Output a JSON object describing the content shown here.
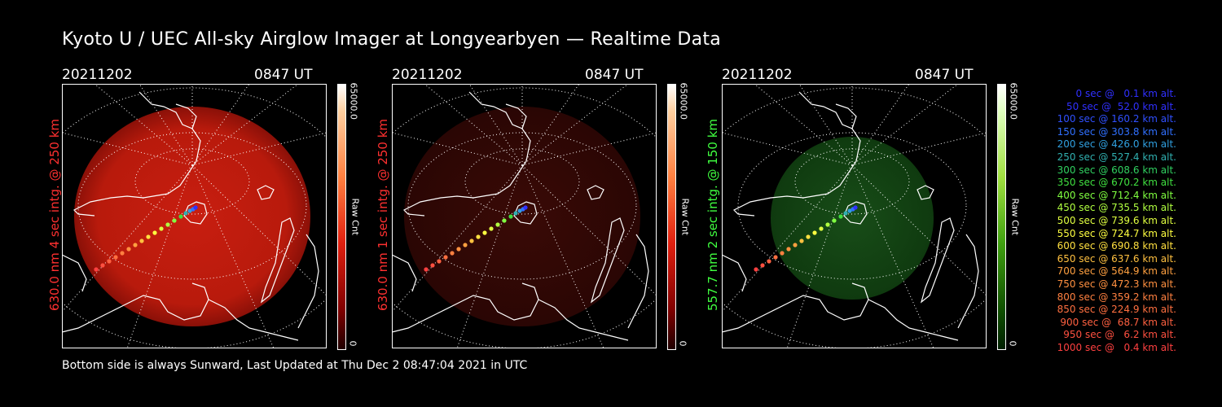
{
  "title": "Kyoto U / UEC All-sky Airglow Imager at Longyearbyen — Realtime Data",
  "footer": "Bottom side is always Sunward, Last Updated at Thu Dec  2 08:47:04 2021 in UTC",
  "panels": [
    {
      "date": "20211202",
      "time": "0847 UT",
      "side_label": "630.0 nm 4 sec intg. @ 250 km",
      "cb_max": "65000.0",
      "cb_min": "0",
      "cb_unit": "Raw Cnt",
      "color": "#ff3030"
    },
    {
      "date": "20211202",
      "time": "0847 UT",
      "side_label": "630.0 nm 1 sec intg. @ 250 km",
      "cb_max": "65000.0",
      "cb_min": "0",
      "cb_unit": "Raw Cnt",
      "color": "#ff3030"
    },
    {
      "date": "20211202",
      "time": "0847 UT",
      "side_label": "557.7 nm 2 sec intg. @ 150 km",
      "cb_max": "65000.0",
      "cb_min": "0",
      "cb_unit": "Raw Cnt",
      "color": "#40ff40"
    }
  ],
  "legend": [
    {
      "text": "   0 sec @   0.1 km alt.",
      "color": "#3030ff"
    },
    {
      "text": "  50 sec @  52.0 km alt.",
      "color": "#3030ff"
    },
    {
      "text": " 100 sec @ 160.2 km alt.",
      "color": "#3050ff"
    },
    {
      "text": " 150 sec @ 303.8 km alt.",
      "color": "#3070ff"
    },
    {
      "text": " 200 sec @ 426.0 km alt.",
      "color": "#30a0e0"
    },
    {
      "text": " 250 sec @ 527.4 km alt.",
      "color": "#30b0b0"
    },
    {
      "text": " 300 sec @ 608.6 km alt.",
      "color": "#30d060"
    },
    {
      "text": " 350 sec @ 670.2 km alt.",
      "color": "#40e040"
    },
    {
      "text": " 400 sec @ 712.4 km alt.",
      "color": "#80ff40"
    },
    {
      "text": " 450 sec @ 735.5 km alt.",
      "color": "#b0ff40"
    },
    {
      "text": " 500 sec @ 739.6 km alt.",
      "color": "#e0ff40"
    },
    {
      "text": " 550 sec @ 724.7 km alt.",
      "color": "#ffff40"
    },
    {
      "text": " 600 sec @ 690.8 km alt.",
      "color": "#ffe040"
    },
    {
      "text": " 650 sec @ 637.6 km alt.",
      "color": "#ffc040"
    },
    {
      "text": " 700 sec @ 564.9 km alt.",
      "color": "#ffa040"
    },
    {
      "text": " 750 sec @ 472.3 km alt.",
      "color": "#ff9040"
    },
    {
      "text": " 800 sec @ 359.2 km alt.",
      "color": "#ff8040"
    },
    {
      "text": " 850 sec @ 224.9 km alt.",
      "color": "#ff7040"
    },
    {
      "text": " 900 sec @  68.7 km alt.",
      "color": "#ff6040"
    },
    {
      "text": " 950 sec @   6.2 km alt.",
      "color": "#ff5040"
    },
    {
      "text": "1000 sec @   0.4 km alt.",
      "color": "#ff4040"
    }
  ]
}
